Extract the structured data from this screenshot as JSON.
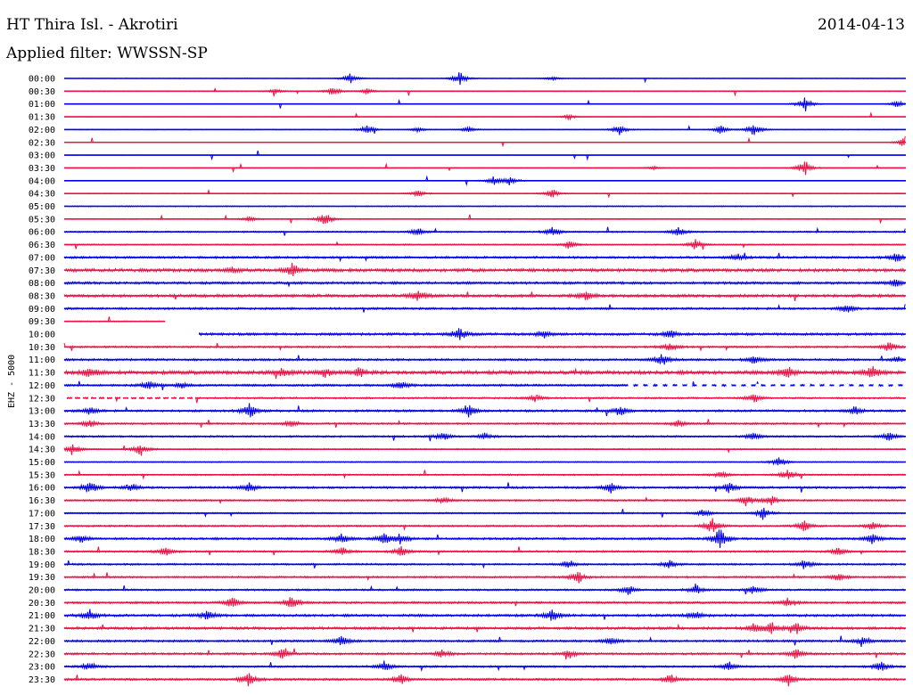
{
  "header": {
    "station": "HT Thira Isl. - Akrotiri",
    "filter": "Applied filter: WWSSN-SP",
    "date": "2014-04-13"
  },
  "chart_data": {
    "type": "helicorder",
    "channel_label": "EHZ - 5000",
    "colors": [
      "#0000ee",
      "#ee1144"
    ],
    "rows": [
      {
        "time": "00:00",
        "events": [
          [
            34,
            0.6
          ],
          [
            47,
            0.9
          ],
          [
            58,
            0.25
          ]
        ],
        "noise": 0.03
      },
      {
        "time": "00:30",
        "events": [
          [
            32,
            0.5
          ],
          [
            36,
            0.3
          ],
          [
            25,
            0.3
          ]
        ],
        "noise": 0.04
      },
      {
        "time": "01:00",
        "events": [
          [
            88,
            0.9
          ],
          [
            99,
            0.4
          ]
        ],
        "noise": 0.03
      },
      {
        "time": "01:30",
        "events": [
          [
            60,
            0.3
          ]
        ],
        "noise": 0.03
      },
      {
        "time": "02:00",
        "events": [
          [
            36,
            0.6
          ],
          [
            42,
            0.3
          ],
          [
            48,
            0.3
          ],
          [
            66,
            0.6
          ],
          [
            78,
            0.5
          ],
          [
            82,
            0.8
          ]
        ],
        "noise": 0.04
      },
      {
        "time": "02:30",
        "events": [
          [
            100,
            0.8
          ]
        ],
        "noise": 0.03
      },
      {
        "time": "03:00",
        "events": [],
        "noise": 0.02
      },
      {
        "time": "03:30",
        "events": [
          [
            88,
            0.9
          ],
          [
            70,
            0.2
          ]
        ],
        "noise": 0.03
      },
      {
        "time": "04:00",
        "events": [
          [
            51,
            0.5
          ],
          [
            53,
            0.6
          ]
        ],
        "noise": 0.03
      },
      {
        "time": "04:30",
        "events": [
          [
            58,
            0.6
          ],
          [
            42,
            0.4
          ]
        ],
        "noise": 0.04
      },
      {
        "time": "05:00",
        "events": [],
        "noise": 0.06
      },
      {
        "time": "05:30",
        "events": [
          [
            31,
            0.8
          ],
          [
            22,
            0.3
          ]
        ],
        "noise": 0.05
      },
      {
        "time": "06:00",
        "events": [
          [
            42,
            0.5
          ],
          [
            58,
            0.6
          ],
          [
            73,
            0.5
          ]
        ],
        "noise": 0.08
      },
      {
        "time": "06:30",
        "events": [
          [
            60,
            0.5
          ],
          [
            75,
            0.6
          ]
        ],
        "noise": 0.07
      },
      {
        "time": "07:00",
        "events": [
          [
            99,
            0.6
          ],
          [
            80,
            0.4
          ]
        ],
        "noise": 0.12
      },
      {
        "time": "07:30",
        "events": [
          [
            27,
            0.8
          ],
          [
            20,
            0.3
          ]
        ],
        "noise": 0.18
      },
      {
        "time": "08:00",
        "events": [
          [
            99,
            0.5
          ]
        ],
        "noise": 0.14
      },
      {
        "time": "08:30",
        "events": [
          [
            42,
            0.6
          ],
          [
            62,
            0.5
          ]
        ],
        "noise": 0.16
      },
      {
        "time": "09:00",
        "events": [
          [
            93,
            0.5
          ]
        ],
        "noise": 0.12
      },
      {
        "time": "09:30",
        "events": [],
        "noise": 0.06,
        "end": 0.12
      },
      {
        "time": "10:00",
        "events": [
          [
            47,
            0.8
          ],
          [
            57,
            0.5
          ],
          [
            72,
            0.5
          ]
        ],
        "noise": 0.14,
        "start": 0.16
      },
      {
        "time": "10:30",
        "events": [
          [
            72,
            0.5
          ],
          [
            98,
            0.6
          ]
        ],
        "noise": 0.1
      },
      {
        "time": "11:00",
        "events": [
          [
            71,
            0.8
          ],
          [
            82,
            0.5
          ],
          [
            99,
            0.3
          ]
        ],
        "noise": 0.12
      },
      {
        "time": "11:30",
        "events": [
          [
            3,
            0.6
          ],
          [
            96,
            0.7
          ],
          [
            26,
            0.6
          ],
          [
            31,
            0.5
          ],
          [
            35,
            0.5
          ],
          [
            86,
            0.6
          ]
        ],
        "noise": 0.2
      },
      {
        "time": "12:00",
        "events": [
          [
            10,
            0.5
          ],
          [
            14,
            0.4
          ],
          [
            40,
            0.5
          ]
        ],
        "noise": 0.12,
        "dash_after": 0.67
      },
      {
        "time": "12:30",
        "events": [
          [
            82,
            0.5
          ],
          [
            56,
            0.4
          ]
        ],
        "noise": 0.1,
        "dash_before": 0.16
      },
      {
        "time": "13:00",
        "events": [
          [
            3,
            0.5
          ],
          [
            22,
            0.9
          ],
          [
            48,
            0.8
          ],
          [
            66,
            0.6
          ],
          [
            94,
            0.5
          ]
        ],
        "noise": 0.12
      },
      {
        "time": "13:30",
        "events": [
          [
            3,
            0.5
          ],
          [
            27,
            0.4
          ],
          [
            73,
            0.4
          ]
        ],
        "noise": 0.1
      },
      {
        "time": "14:00",
        "events": [
          [
            45,
            0.5
          ],
          [
            50,
            0.4
          ],
          [
            82,
            0.5
          ],
          [
            98,
            0.5
          ]
        ],
        "noise": 0.1
      },
      {
        "time": "14:30",
        "events": [
          [
            1,
            0.7
          ],
          [
            9,
            0.8
          ]
        ],
        "noise": 0.07
      },
      {
        "time": "15:00",
        "events": [
          [
            85,
            0.6
          ]
        ],
        "noise": 0.06
      },
      {
        "time": "15:30",
        "events": [
          [
            86,
            0.7
          ],
          [
            78,
            0.4
          ]
        ],
        "noise": 0.08
      },
      {
        "time": "16:00",
        "events": [
          [
            3,
            0.8
          ],
          [
            8,
            0.5
          ],
          [
            22,
            0.5
          ],
          [
            65,
            0.6
          ],
          [
            79,
            0.6
          ]
        ],
        "noise": 0.12
      },
      {
        "time": "16:30",
        "events": [
          [
            45,
            0.4
          ],
          [
            81,
            0.6
          ],
          [
            84,
            0.5
          ]
        ],
        "noise": 0.1
      },
      {
        "time": "17:00",
        "events": [
          [
            76,
            0.5
          ],
          [
            83,
            0.7
          ]
        ],
        "noise": 0.08
      },
      {
        "time": "17:30",
        "events": [
          [
            77,
            0.9
          ],
          [
            88,
            0.7
          ],
          [
            96,
            0.6
          ]
        ],
        "noise": 0.1
      },
      {
        "time": "18:00",
        "events": [
          [
            78,
            1.4
          ],
          [
            2,
            0.5
          ],
          [
            33,
            0.7
          ],
          [
            38,
            0.6
          ],
          [
            40,
            0.6
          ],
          [
            96,
            0.6
          ]
        ],
        "noise": 0.12
      },
      {
        "time": "18:30",
        "events": [
          [
            12,
            0.5
          ],
          [
            33,
            0.5
          ],
          [
            40,
            0.6
          ],
          [
            92,
            0.5
          ]
        ],
        "noise": 0.1
      },
      {
        "time": "19:00",
        "events": [
          [
            60,
            0.5
          ],
          [
            72,
            0.5
          ],
          [
            88,
            0.6
          ]
        ],
        "noise": 0.1
      },
      {
        "time": "19:30",
        "events": [
          [
            61,
            0.8
          ],
          [
            92,
            0.5
          ]
        ],
        "noise": 0.1
      },
      {
        "time": "20:00",
        "events": [
          [
            67,
            0.6
          ],
          [
            75,
            0.6
          ],
          [
            82,
            0.5
          ]
        ],
        "noise": 0.1
      },
      {
        "time": "20:30",
        "events": [
          [
            20,
            0.7
          ],
          [
            27,
            0.8
          ],
          [
            86,
            0.6
          ]
        ],
        "noise": 0.12
      },
      {
        "time": "21:00",
        "events": [
          [
            3,
            0.7
          ],
          [
            17,
            0.6
          ],
          [
            58,
            0.7
          ],
          [
            75,
            0.5
          ]
        ],
        "noise": 0.14
      },
      {
        "time": "21:30",
        "events": [
          [
            82,
            0.6
          ],
          [
            84,
            0.7
          ],
          [
            87,
            0.6
          ]
        ],
        "noise": 0.14
      },
      {
        "time": "22:00",
        "events": [
          [
            33,
            0.6
          ],
          [
            65,
            0.5
          ],
          [
            95,
            0.5
          ]
        ],
        "noise": 0.12
      },
      {
        "time": "22:30",
        "events": [
          [
            26,
            0.6
          ],
          [
            45,
            0.5
          ],
          [
            60,
            0.5
          ],
          [
            87,
            0.6
          ]
        ],
        "noise": 0.12
      },
      {
        "time": "23:00",
        "events": [
          [
            3,
            0.5
          ],
          [
            38,
            0.6
          ],
          [
            79,
            0.5
          ],
          [
            97,
            0.6
          ]
        ],
        "noise": 0.1
      },
      {
        "time": "23:30",
        "events": [
          [
            22,
            1.0
          ],
          [
            40,
            0.6
          ],
          [
            72,
            0.6
          ],
          [
            86,
            0.7
          ]
        ],
        "noise": 0.12
      }
    ]
  }
}
